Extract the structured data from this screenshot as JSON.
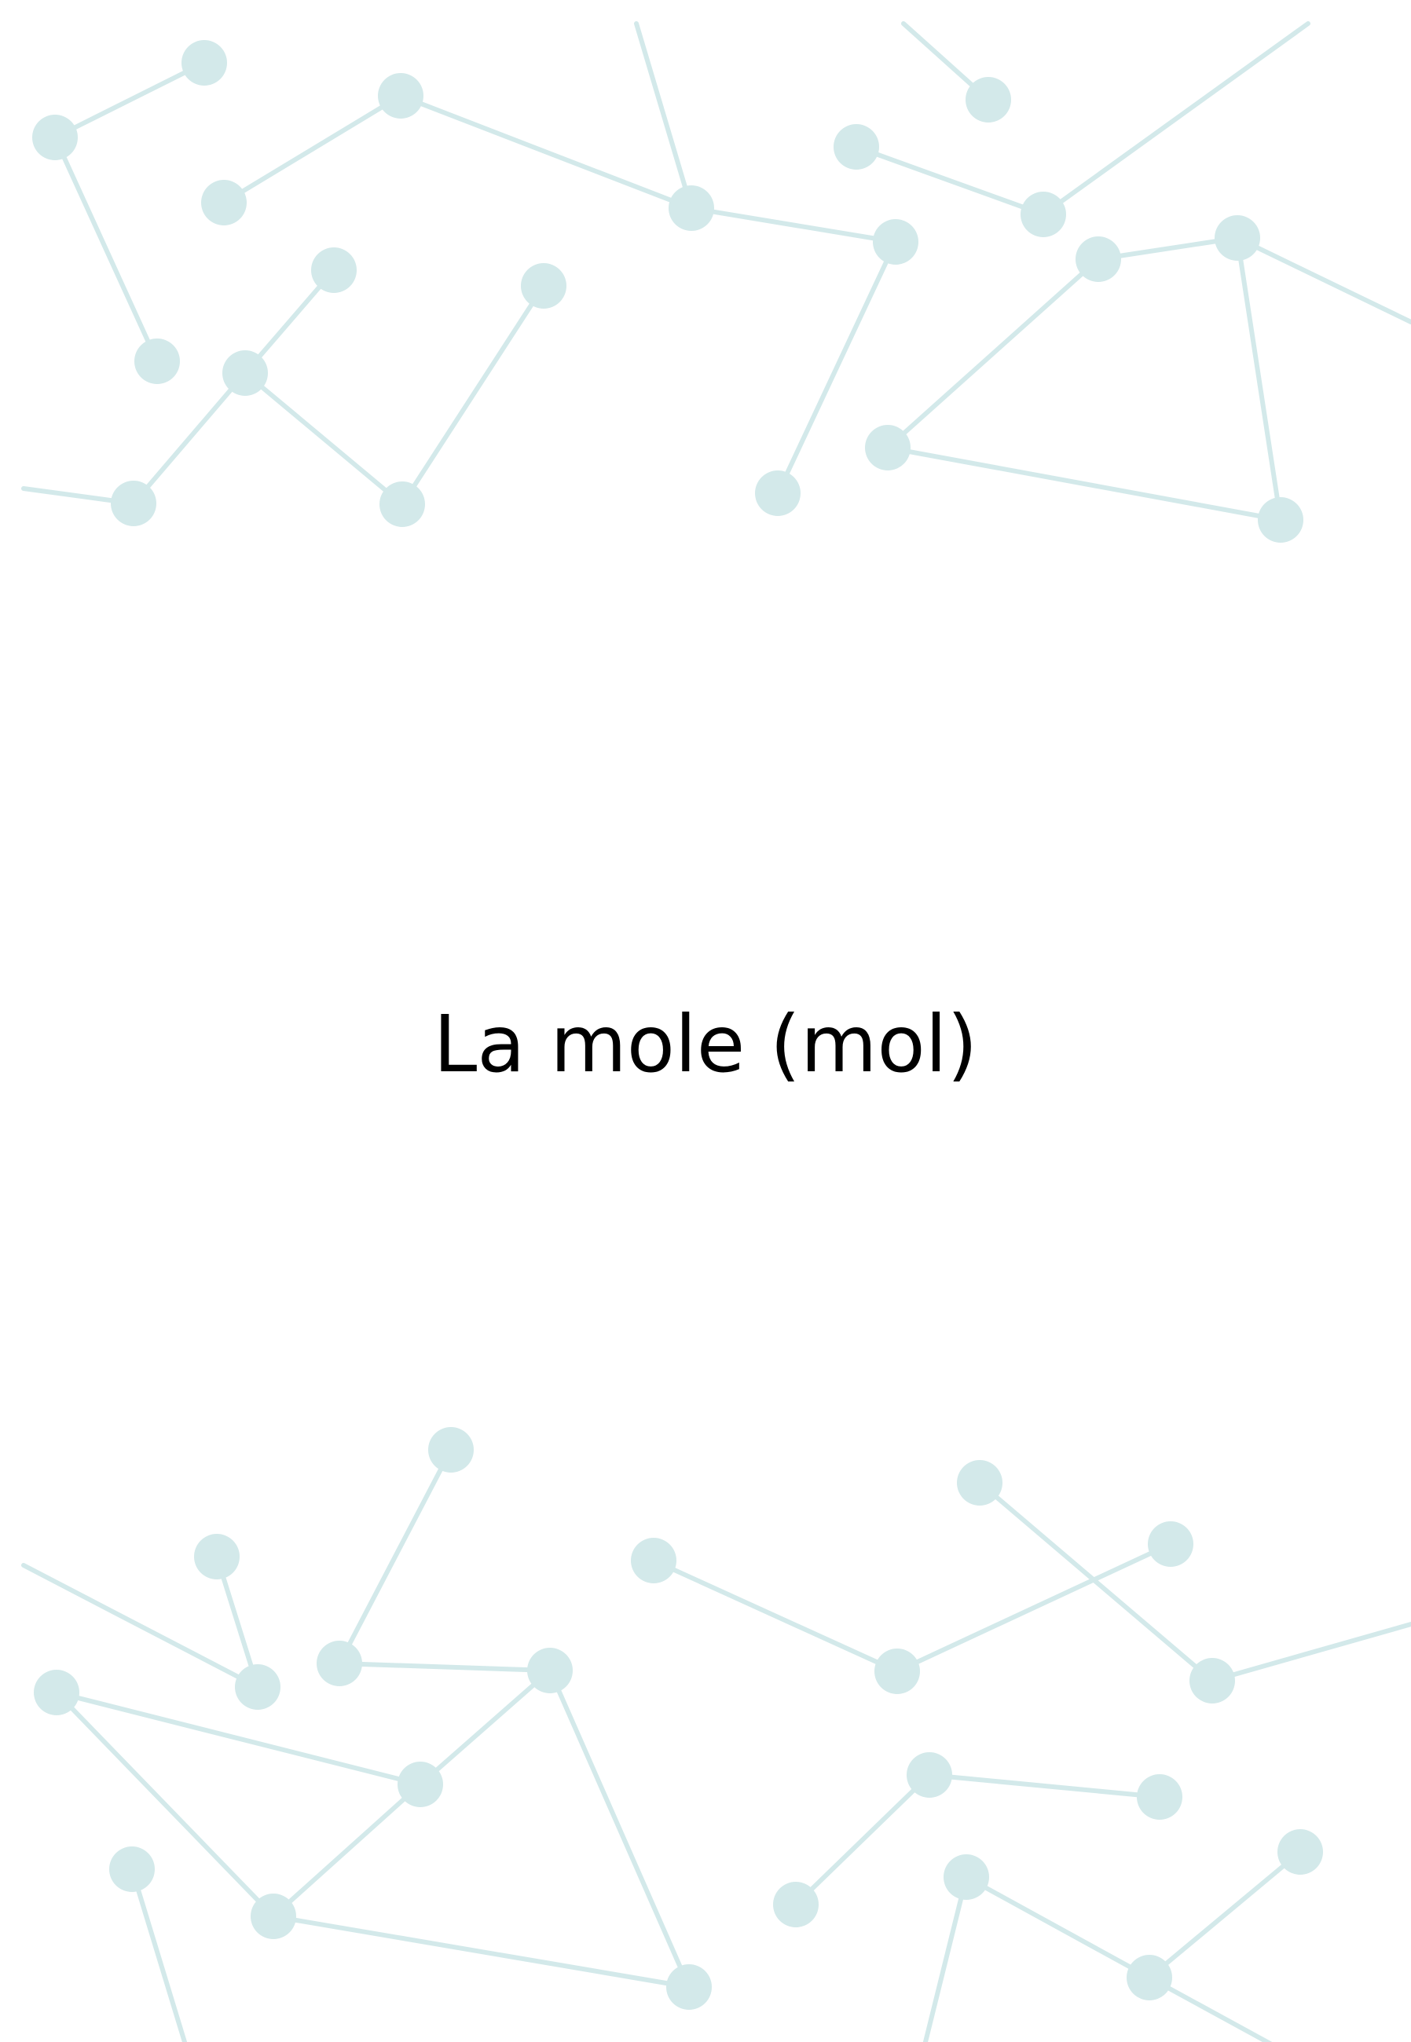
{
  "document": {
    "title": "La mole (mol)"
  },
  "decoration": {
    "color": "#d3e9ea",
    "top_network_icon": "molecule-network-icon",
    "bottom_network_icon": "molecule-network-icon"
  }
}
